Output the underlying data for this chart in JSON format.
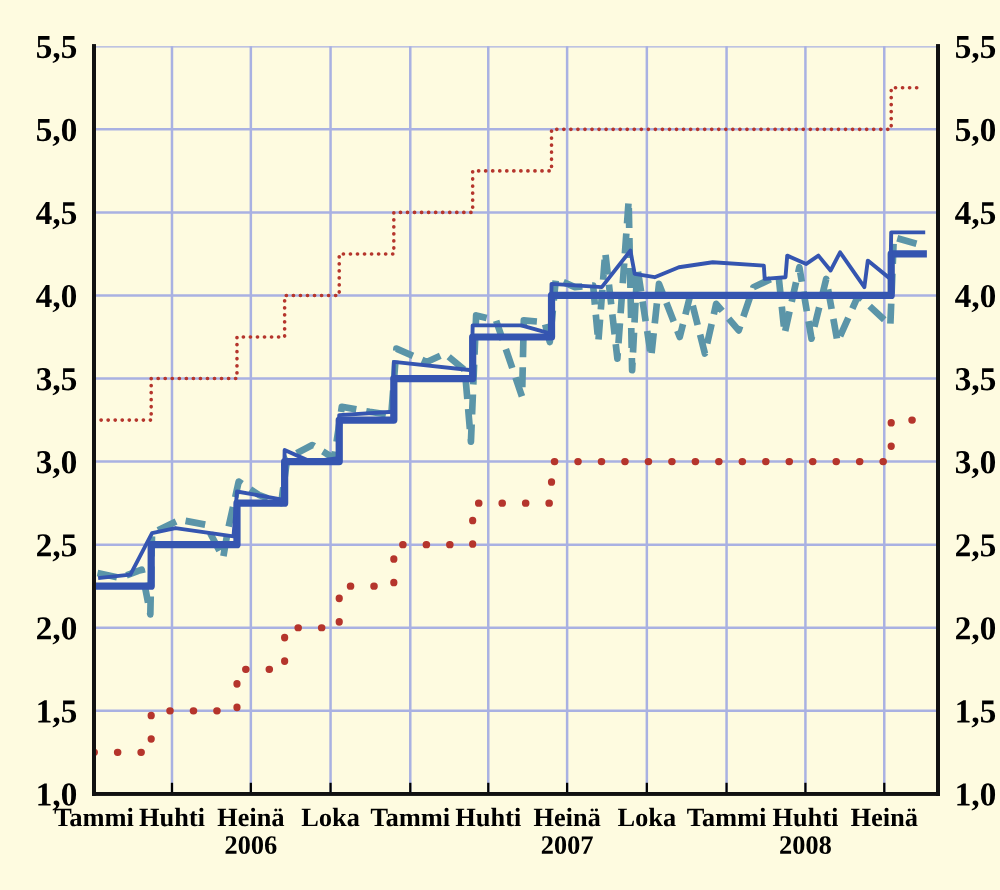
{
  "chart_data": {
    "type": "line",
    "xlim": [
      "2006-01-01",
      "2008-09-01"
    ],
    "xticks": [
      {
        "value": "2006-01-01",
        "label": "Tammi"
      },
      {
        "value": "2006-04-01",
        "label": "Huhti"
      },
      {
        "value": "2006-07-01",
        "label": "Heinä\n2006"
      },
      {
        "value": "2006-10-01",
        "label": "Loka"
      },
      {
        "value": "2007-01-01",
        "label": "Tammi"
      },
      {
        "value": "2007-04-01",
        "label": "Huhti"
      },
      {
        "value": "2007-07-01",
        "label": "Heinä\n2007"
      },
      {
        "value": "2007-10-01",
        "label": "Loka"
      },
      {
        "value": "2008-01-01",
        "label": "Tammi"
      },
      {
        "value": "2008-04-01",
        "label": "Huhti\n2008"
      },
      {
        "value": "2008-07-01",
        "label": "Heinä"
      }
    ],
    "ylim": [
      1.0,
      5.5
    ],
    "yticks": [
      {
        "value": 1.0,
        "label": "1,0"
      },
      {
        "value": 1.5,
        "label": "1,5"
      },
      {
        "value": 2.0,
        "label": "2,0"
      },
      {
        "value": 2.5,
        "label": "2,5"
      },
      {
        "value": 3.0,
        "label": "3,0"
      },
      {
        "value": 3.5,
        "label": "3,5"
      },
      {
        "value": 4.0,
        "label": "4,0"
      },
      {
        "value": 4.5,
        "label": "4,5"
      },
      {
        "value": 5.0,
        "label": "5,0"
      },
      {
        "value": 5.5,
        "label": "5,5"
      }
    ],
    "y2lim": [
      1.0,
      5.5
    ],
    "y2ticks": [
      {
        "value": 1.0,
        "label": "1,0"
      },
      {
        "value": 1.5,
        "label": "1,5"
      },
      {
        "value": 2.0,
        "label": "2,0"
      },
      {
        "value": 2.5,
        "label": "2,5"
      },
      {
        "value": 3.0,
        "label": "3,0"
      },
      {
        "value": 3.5,
        "label": "3,5"
      },
      {
        "value": 4.0,
        "label": "4,0"
      },
      {
        "value": 4.5,
        "label": "4,5"
      },
      {
        "value": 5.0,
        "label": "5,0"
      },
      {
        "value": 5.5,
        "label": "5,5"
      }
    ],
    "grid": true,
    "series": [
      {
        "type": "step",
        "color": "#b5352c",
        "line_style": "dotted",
        "x": [
          "2006-01-01",
          "2006-03-08",
          "2006-06-15",
          "2006-08-09",
          "2006-10-11",
          "2006-12-13",
          "2007-03-14",
          "2007-06-13",
          "2008-07-09",
          "2008-08-15"
        ],
        "values": [
          3.25,
          3.5,
          3.75,
          4.0,
          4.25,
          4.5,
          4.75,
          5.0,
          5.25,
          5.25
        ]
      },
      {
        "type": "step",
        "color": "#b5352c",
        "line_style": "dotted",
        "x": [
          "2006-01-01",
          "2006-03-08",
          "2006-06-15",
          "2006-08-09",
          "2006-10-11",
          "2006-12-13",
          "2007-03-14",
          "2007-06-13",
          "2008-07-09",
          "2008-08-15"
        ],
        "values": [
          1.25,
          1.5,
          1.75,
          2.0,
          2.25,
          2.5,
          2.75,
          3.0,
          3.25,
          3.25
        ]
      },
      {
        "color": "#5b95a8",
        "line_style": "dashed",
        "x": [
          "2006-01-05",
          "2006-01-31",
          "2006-02-25",
          "2006-03-07",
          "2006-03-09",
          "2006-04-10",
          "2006-05-10",
          "2006-05-30",
          "2006-06-05",
          "2006-06-17",
          "2006-07-10",
          "2006-08-05",
          "2006-08-12",
          "2006-09-10",
          "2006-10-05",
          "2006-10-14",
          "2006-11-15",
          "2006-12-10",
          "2006-12-16",
          "2007-01-20",
          "2007-02-10",
          "2007-03-05",
          "2007-03-12",
          "2007-03-18",
          "2007-04-10",
          "2007-05-10",
          "2007-05-12",
          "2007-06-05",
          "2007-06-11",
          "2007-06-18",
          "2007-07-10",
          "2007-07-31",
          "2007-08-06",
          "2007-08-14",
          "2007-08-28",
          "2007-09-10",
          "2007-09-14",
          "2007-09-20",
          "2007-10-06",
          "2007-10-15",
          "2007-11-08",
          "2007-11-20",
          "2007-12-07",
          "2007-12-20",
          "2008-01-15",
          "2008-02-01",
          "2008-03-01",
          "2008-03-08",
          "2008-03-25",
          "2008-04-08",
          "2008-04-25",
          "2008-05-08",
          "2008-06-01",
          "2008-07-08",
          "2008-07-12",
          "2008-08-15"
        ],
        "values": [
          2.33,
          2.3,
          2.35,
          2.08,
          2.57,
          2.65,
          2.62,
          2.42,
          2.6,
          2.88,
          2.8,
          2.75,
          3.02,
          3.1,
          3.02,
          3.33,
          3.3,
          3.28,
          3.68,
          3.6,
          3.65,
          3.55,
          3.12,
          3.88,
          3.85,
          3.39,
          3.85,
          3.84,
          3.72,
          4.1,
          4.05,
          4.06,
          3.72,
          4.26,
          3.62,
          4.57,
          3.55,
          4.17,
          3.63,
          4.07,
          3.75,
          4.0,
          3.65,
          3.95,
          3.79,
          4.05,
          4.12,
          3.77,
          4.17,
          3.74,
          4.1,
          3.72,
          4.0,
          3.82,
          4.35,
          4.3
        ]
      },
      {
        "type": "step",
        "color": "#3555b0",
        "line_style": "solid",
        "x": [
          "2006-01-05",
          "2006-03-08",
          "2006-06-15",
          "2006-08-09",
          "2006-10-11",
          "2006-12-13",
          "2007-03-14",
          "2007-06-13",
          "2008-07-09",
          "2008-08-15"
        ],
        "values": [
          2.25,
          2.5,
          2.75,
          3.0,
          3.25,
          3.5,
          3.75,
          4.0,
          4.25,
          4.25
        ]
      },
      {
        "color": "#3555b0",
        "line_style": "solid",
        "x": [
          "2006-01-08",
          "2006-02-12",
          "2006-03-09",
          "2006-04-05",
          "2006-06-11",
          "2006-06-15",
          "2006-08-08",
          "2006-08-09",
          "2006-09-08",
          "2006-10-10",
          "2006-10-11",
          "2006-12-12",
          "2006-12-13",
          "2007-03-13",
          "2007-03-14",
          "2007-05-09",
          "2007-06-12",
          "2007-06-13",
          "2007-08-10",
          "2007-09-12",
          "2007-09-17",
          "2007-10-10",
          "2007-11-07",
          "2007-12-16",
          "2008-02-13",
          "2008-02-14",
          "2008-03-09",
          "2008-03-11",
          "2008-04-02",
          "2008-04-16",
          "2008-04-30",
          "2008-05-11",
          "2008-06-08",
          "2008-06-12",
          "2008-07-08",
          "2008-07-09",
          "2008-08-15"
        ],
        "values": [
          2.3,
          2.32,
          2.57,
          2.6,
          2.55,
          2.82,
          2.77,
          3.07,
          3.0,
          3.02,
          3.28,
          3.3,
          3.6,
          3.55,
          3.82,
          3.82,
          3.77,
          4.07,
          4.05,
          4.27,
          4.13,
          4.11,
          4.17,
          4.2,
          4.18,
          4.1,
          4.11,
          4.24,
          4.19,
          4.24,
          4.15,
          4.26,
          4.05,
          4.21,
          4.1,
          4.38,
          4.38
        ]
      }
    ]
  }
}
